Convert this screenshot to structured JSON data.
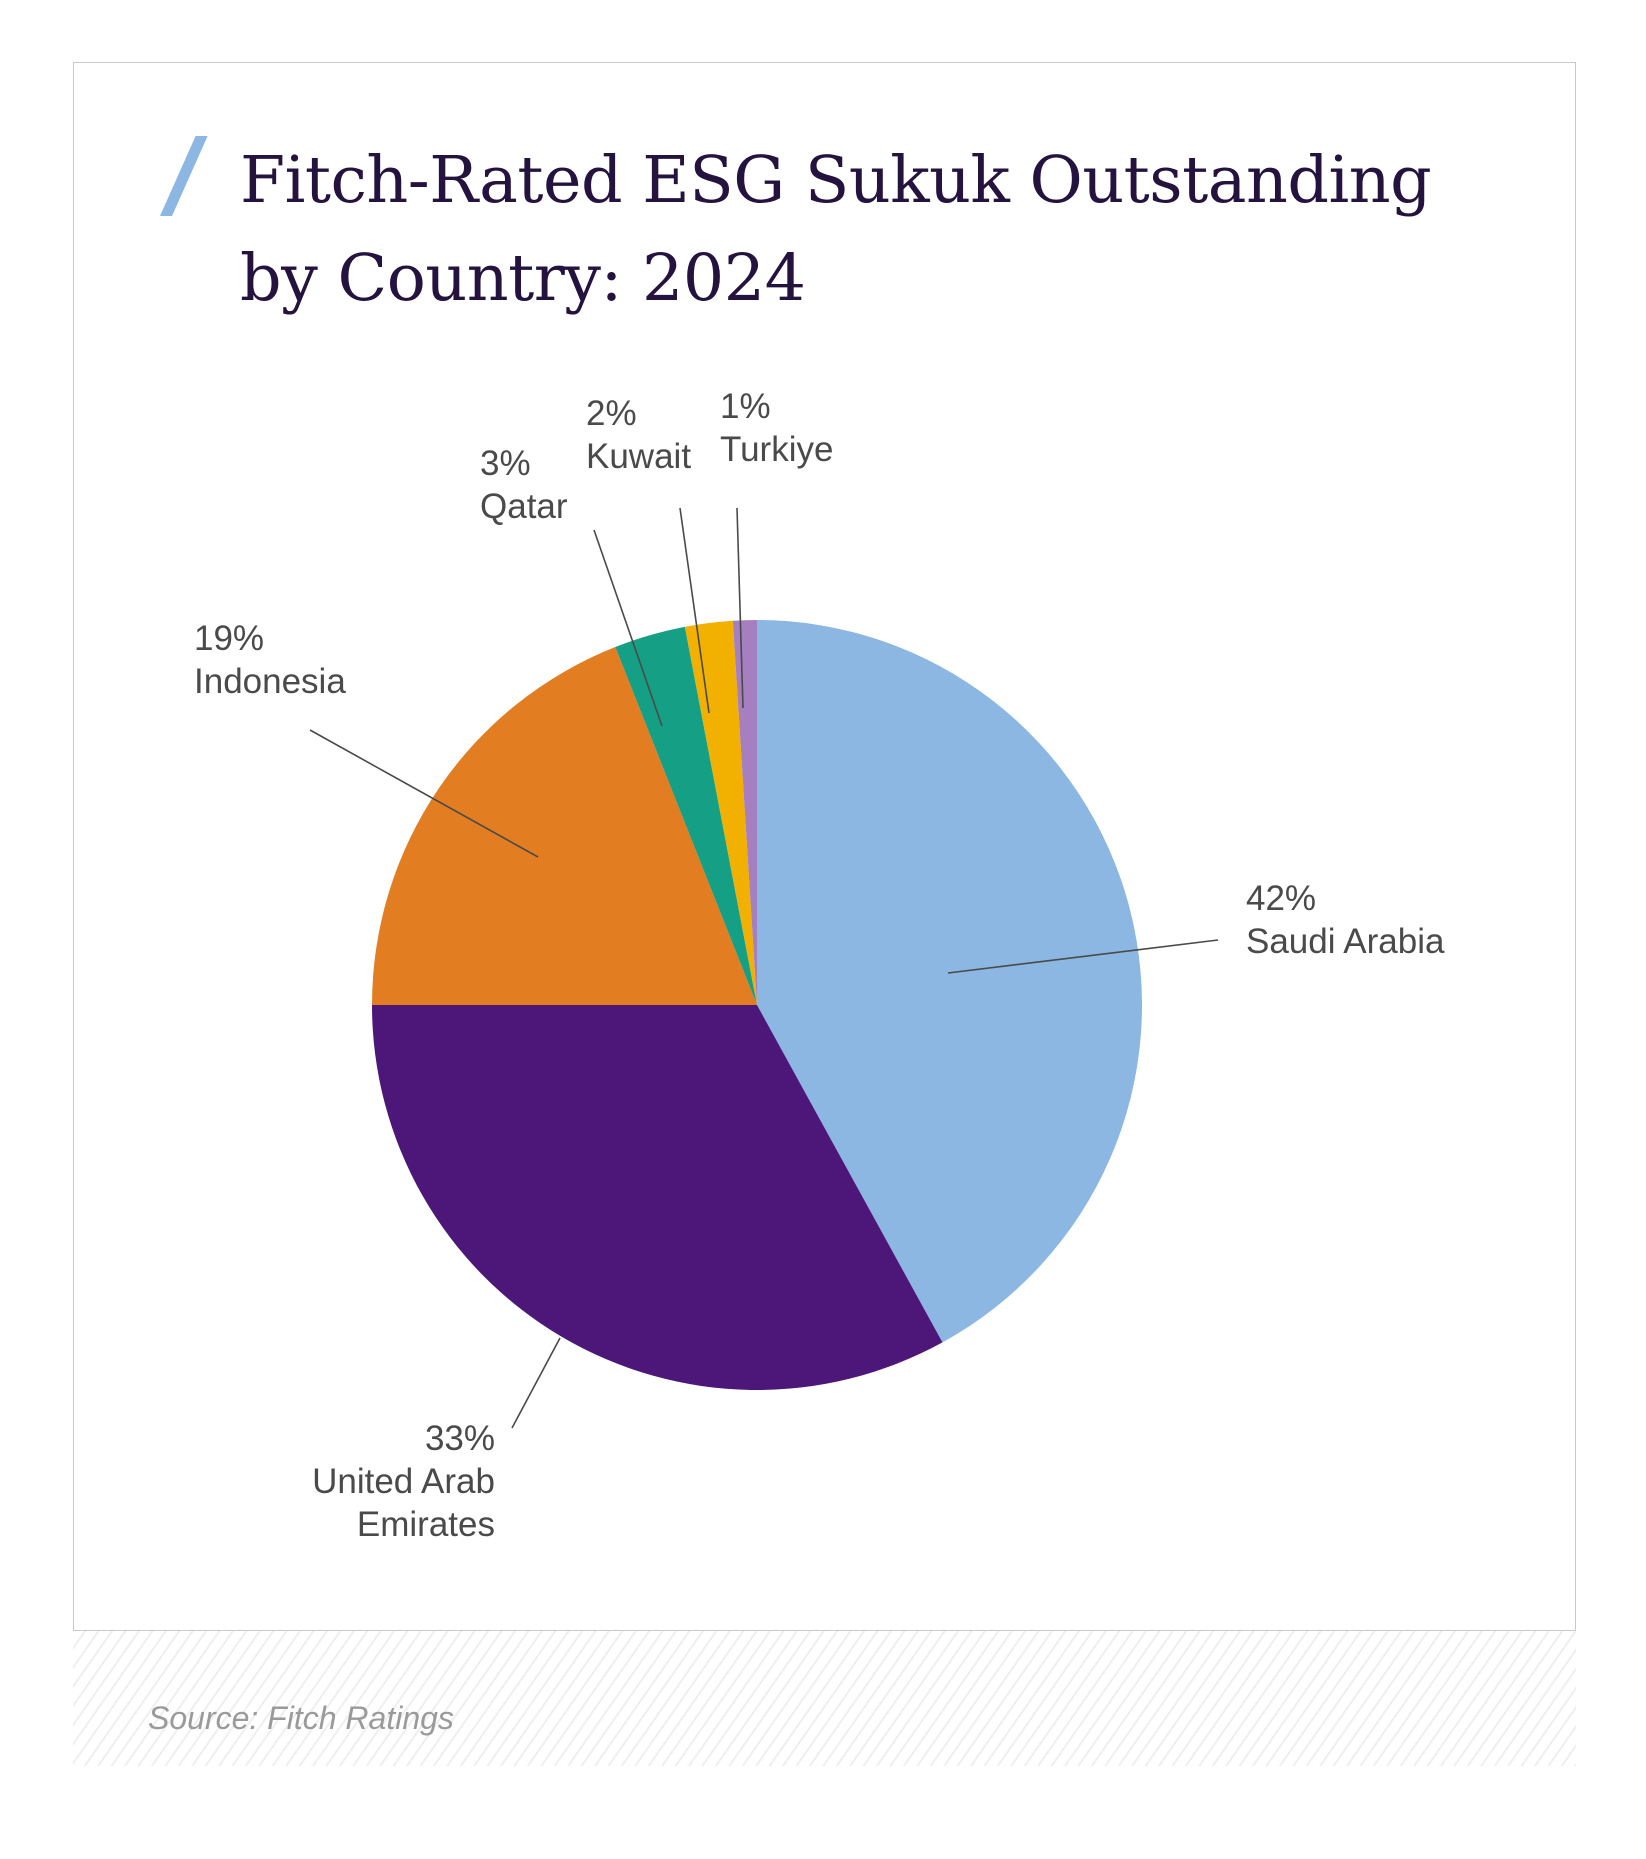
{
  "title_lines": [
    "Fitch-Rated ESG Sukuk Outstanding",
    "by Country: 2024"
  ],
  "source": "Source: Fitch Ratings",
  "colors": {
    "title": "#24123f",
    "accent_slash": "#8bb7e2",
    "label_text": "#4a4a4a",
    "leader_line": "#4a4a4a"
  },
  "chart_data": {
    "type": "pie",
    "title": "Fitch-Rated ESG Sukuk Outstanding by Country: 2024",
    "slices": [
      {
        "label": "Saudi Arabia",
        "value": 42,
        "value_label": "42%",
        "color": "#8bb7e2"
      },
      {
        "label": "United Arab Emirates",
        "value": 33,
        "value_label": "33%",
        "color": "#4d177a"
      },
      {
        "label": "Indonesia",
        "value": 19,
        "value_label": "19%",
        "color": "#e27d22"
      },
      {
        "label": "Qatar",
        "value": 3,
        "value_label": "3%",
        "color": "#15a085"
      },
      {
        "label": "Kuwait",
        "value": 2,
        "value_label": "2%",
        "color": "#f2b100"
      },
      {
        "label": "Turkiye",
        "value": 1,
        "value_label": "1%",
        "color": "#a57fc0"
      }
    ],
    "start": "12 o'clock",
    "direction": "clockwise",
    "legend": "none (labels outside with leader lines)"
  }
}
